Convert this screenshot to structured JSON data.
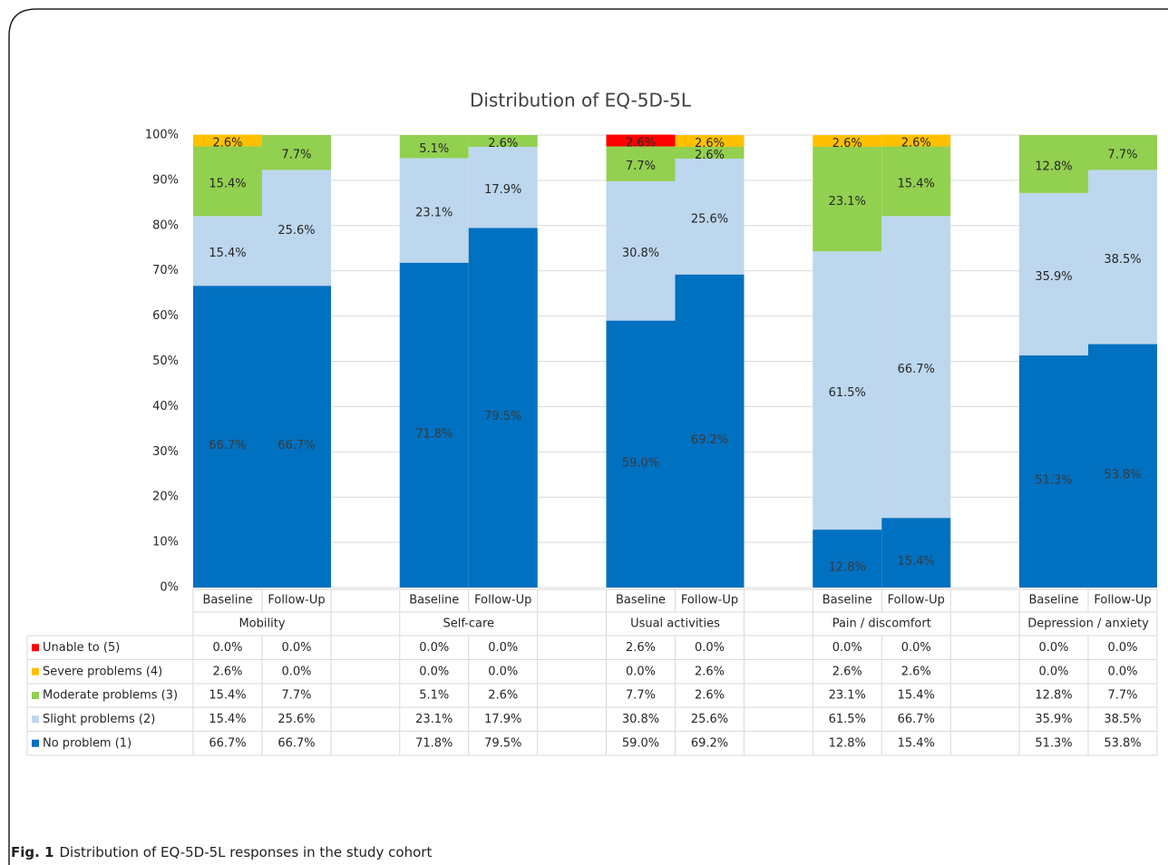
{
  "chart_data": {
    "type": "stacked_bar",
    "title": "Distribution of EQ-5D-5L",
    "groups": [
      "Mobility",
      "Self-care",
      "Usual activities",
      "Pain / discomfort",
      "Depression / anxiety"
    ],
    "categories": [
      "Baseline",
      "Follow-Up",
      "Baseline",
      "Follow-Up",
      "Baseline",
      "Follow-Up",
      "Baseline",
      "Follow-Up",
      "Baseline",
      "Follow-Up"
    ],
    "ylim": [
      0,
      100
    ],
    "yticks": [
      {
        "value": 0,
        "label": "0%"
      },
      {
        "value": 10,
        "label": "10%"
      },
      {
        "value": 20,
        "label": "20%"
      },
      {
        "value": 30,
        "label": "30%"
      },
      {
        "value": 40,
        "label": "40%"
      },
      {
        "value": 50,
        "label": "50%"
      },
      {
        "value": 60,
        "label": "60%"
      },
      {
        "value": 70,
        "label": "70%"
      },
      {
        "value": 80,
        "label": "80%"
      },
      {
        "value": 90,
        "label": "90%"
      },
      {
        "value": 100,
        "label": "100%"
      }
    ],
    "grid": true,
    "series": [
      {
        "name": "Unable to (5)",
        "color": "#ff0000",
        "values": [
          0,
          0,
          0,
          0,
          2.6,
          0,
          0,
          0,
          0,
          0
        ],
        "value_labels": [
          "0.0%",
          "0.0%",
          "0.0%",
          "0.0%",
          "2.6%",
          "0.0%",
          "0.0%",
          "0.0%",
          "0.0%",
          "0.0%"
        ]
      },
      {
        "name": "Severe problems (4)",
        "color": "#ffc000",
        "values": [
          2.6,
          0,
          0,
          0,
          0,
          2.6,
          2.6,
          2.6,
          0,
          0
        ],
        "value_labels": [
          "2.6%",
          "0.0%",
          "0.0%",
          "0.0%",
          "0.0%",
          "2.6%",
          "2.6%",
          "2.6%",
          "0.0%",
          "0.0%"
        ]
      },
      {
        "name": "Moderate problems (3)",
        "color": "#92d050",
        "values": [
          15.4,
          7.7,
          5.1,
          2.6,
          7.7,
          2.6,
          23.1,
          15.4,
          12.8,
          7.7
        ],
        "value_labels": [
          "15.4%",
          "7.7%",
          "5.1%",
          "2.6%",
          "7.7%",
          "2.6%",
          "23.1%",
          "15.4%",
          "12.8%",
          "7.7%"
        ]
      },
      {
        "name": "Slight problems (2)",
        "color": "#bdd7ee",
        "values": [
          15.4,
          25.6,
          23.1,
          17.9,
          30.8,
          25.6,
          61.5,
          66.7,
          35.9,
          38.5
        ],
        "value_labels": [
          "15.4%",
          "25.6%",
          "23.1%",
          "17.9%",
          "30.8%",
          "25.6%",
          "61.5%",
          "66.7%",
          "35.9%",
          "38.5%"
        ]
      },
      {
        "name": "No problem (1)",
        "color": "#0070c0",
        "values": [
          66.7,
          66.7,
          71.8,
          79.5,
          59.0,
          69.2,
          12.8,
          15.4,
          51.3,
          53.8
        ],
        "value_labels": [
          "66.7%",
          "66.7%",
          "71.8%",
          "79.5%",
          "59.0%",
          "69.2%",
          "12.8%",
          "15.4%",
          "51.3%",
          "53.8%"
        ]
      }
    ],
    "caption": {
      "label": "Fig. 1",
      "text": "Distribution of EQ-5D-5L responses in the study cohort"
    }
  }
}
